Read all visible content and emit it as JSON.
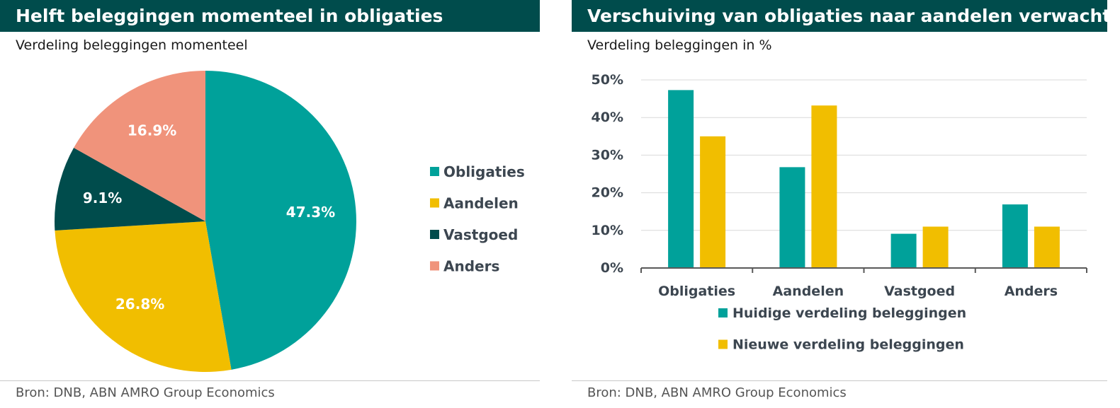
{
  "colors": {
    "title_bg": "#004C4C",
    "obligaties": "#00A19A",
    "aandelen": "#F1BE00",
    "vastgoed": "#004C4C",
    "anders": "#F0937B",
    "axis_text": "#3C4650",
    "grid": "#D9D9D9"
  },
  "left": {
    "title": "Helft beleggingen momenteel in obligaties",
    "subtitle": "Verdeling beleggingen momenteel",
    "source": "Bron: DNB, ABN AMRO Group Economics"
  },
  "right": {
    "title": "Verschuiving van obligaties naar aandelen verwacht",
    "subtitle": "Verdeling beleggingen in %",
    "source": "Bron: DNB, ABN AMRO Group Economics"
  },
  "chart_data": [
    {
      "type": "pie",
      "title": "Verdeling beleggingen momenteel",
      "legend_position": "right",
      "slices": [
        {
          "label": "Obligaties",
          "value": 47.3,
          "display": "47.3%",
          "color": "#00A19A"
        },
        {
          "label": "Aandelen",
          "value": 26.8,
          "display": "26.8%",
          "color": "#F1BE00"
        },
        {
          "label": "Vastgoed",
          "value": 9.1,
          "display": "9.1%",
          "color": "#004C4C"
        },
        {
          "label": "Anders",
          "value": 16.9,
          "display": "16.9%",
          "color": "#F0937B"
        }
      ]
    },
    {
      "type": "bar",
      "title": "Verdeling beleggingen in %",
      "categories": [
        "Obligaties",
        "Aandelen",
        "Vastgoed",
        "Anders"
      ],
      "series": [
        {
          "name": "Huidige verdeling beleggingen",
          "values": [
            47.3,
            26.8,
            9.1,
            16.9
          ],
          "color": "#00A19A"
        },
        {
          "name": "Nieuwe verdeling beleggingen",
          "values": [
            35,
            43.2,
            11,
            11
          ],
          "color": "#F1BE00"
        }
      ],
      "ylim": [
        0,
        50
      ],
      "yticks": [
        0,
        10,
        20,
        30,
        40,
        50
      ],
      "ytick_labels": [
        "0%",
        "10%",
        "20%",
        "30%",
        "40%",
        "50%"
      ],
      "grid": true,
      "legend_position": "bottom"
    }
  ]
}
